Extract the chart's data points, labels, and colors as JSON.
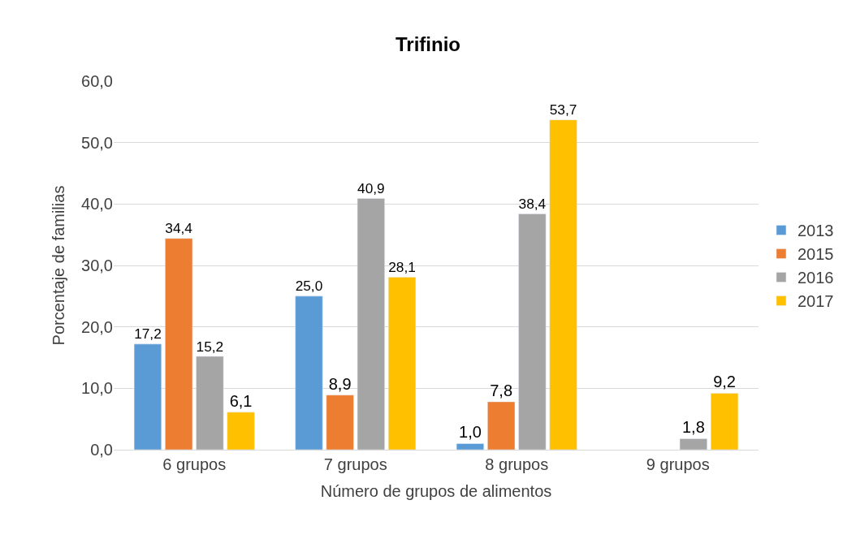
{
  "chart_data": {
    "type": "bar",
    "title": "Trifinio",
    "xlabel": "Número de grupos de alimentos",
    "ylabel": "Porcentaje de familias",
    "categories": [
      "6 grupos",
      "7 grupos",
      "8 grupos",
      "9 grupos"
    ],
    "series": [
      {
        "name": "2013",
        "color": "#5b9bd5",
        "values": [
          17.2,
          25.0,
          1.0,
          null
        ],
        "value_labels": [
          "17,2",
          "25,0",
          "1,0",
          null
        ]
      },
      {
        "name": "2015",
        "color": "#ed7d31",
        "values": [
          34.4,
          8.9,
          7.8,
          null
        ],
        "value_labels": [
          "34,4",
          "8,9",
          "7,8",
          null
        ]
      },
      {
        "name": "2016",
        "color": "#a5a5a5",
        "values": [
          15.2,
          40.9,
          38.4,
          1.8
        ],
        "value_labels": [
          "15,2",
          "40,9",
          "38,4",
          "1,8"
        ]
      },
      {
        "name": "2017",
        "color": "#ffc000",
        "values": [
          6.1,
          28.1,
          53.7,
          9.2
        ],
        "value_labels": [
          "6,1",
          "28,1",
          "53,7",
          "9,2"
        ]
      }
    ],
    "ylim": [
      0,
      60
    ],
    "yticks": [
      {
        "value": 0,
        "label": "0,0"
      },
      {
        "value": 10,
        "label": "10,0"
      },
      {
        "value": 20,
        "label": "20,0"
      },
      {
        "value": 30,
        "label": "30,0"
      },
      {
        "value": 40,
        "label": "40,0"
      },
      {
        "value": 50,
        "label": "50,0"
      },
      {
        "value": 60,
        "label": "60,0"
      }
    ],
    "grid": "y",
    "legend": "right"
  }
}
